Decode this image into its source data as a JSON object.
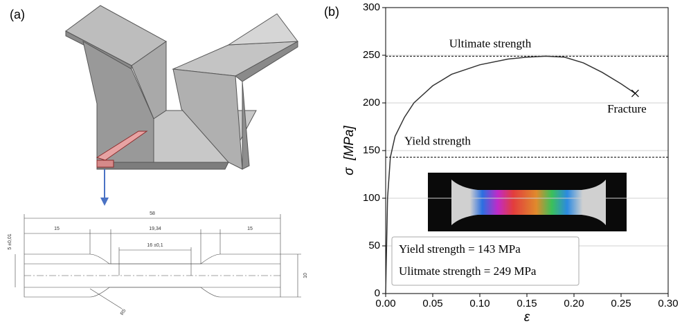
{
  "panel_labels": [
    "(a)",
    "(b)"
  ],
  "drawing": {
    "dimensions": [
      "58",
      "15",
      "19,34",
      "15",
      "16 ±0,1",
      "5 ±0,01",
      "10",
      "R5"
    ]
  },
  "chart_data": {
    "type": "line",
    "x": [
      0,
      0.002,
      0.005,
      0.01,
      0.02,
      0.03,
      0.05,
      0.07,
      0.1,
      0.13,
      0.15,
      0.17,
      0.19,
      0.21,
      0.23,
      0.25,
      0.265
    ],
    "values": [
      0,
      100,
      143,
      165,
      185,
      200,
      218,
      230,
      240,
      246,
      248,
      249,
      248,
      242,
      232,
      220,
      210
    ],
    "color": "#333333",
    "xlabel": "ε",
    "ylabel": "σ  [MPa]",
    "xlim": [
      0,
      0.3
    ],
    "ylim": [
      0,
      300
    ],
    "xticks": [
      {
        "value": 0,
        "label": "0.00"
      },
      {
        "value": 0.05,
        "label": "0.05"
      },
      {
        "value": 0.1,
        "label": "0.10"
      },
      {
        "value": 0.15,
        "label": "0.15"
      },
      {
        "value": 0.2,
        "label": "0.20"
      },
      {
        "value": 0.25,
        "label": "0.25"
      },
      {
        "value": 0.3,
        "label": "0.30"
      }
    ],
    "yticks": [
      0,
      50,
      100,
      150,
      200,
      250,
      300
    ],
    "grid": true,
    "reference_lines": [
      {
        "label": "Ultimate strength",
        "value": 249
      },
      {
        "label": "Yield strength",
        "value": 143
      }
    ],
    "fracture": {
      "label": "Fracture",
      "x": 0.265,
      "y": 210
    },
    "info_box": [
      "Yield strength = 143 MPa",
      "Ulitmate strength = 249 MPa"
    ]
  }
}
